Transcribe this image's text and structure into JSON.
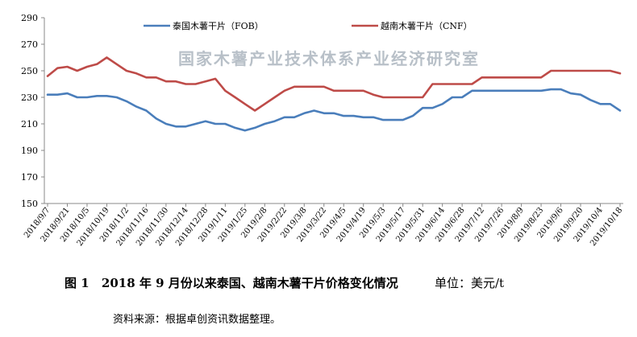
{
  "chart_data": {
    "type": "line",
    "title": "",
    "watermark": "国家木薯产业技术体系产业经济研究室",
    "ylim": [
      150,
      290
    ],
    "yticks": [
      150,
      170,
      190,
      210,
      230,
      250,
      270,
      290
    ],
    "grid": false,
    "legend_position": "top",
    "x": [
      "2018/9/7",
      "2018/9/14",
      "2018/9/21",
      "2018/9/28",
      "2018/10/5",
      "2018/10/12",
      "2018/10/19",
      "2018/10/26",
      "2018/11/2",
      "2018/11/9",
      "2018/11/16",
      "2018/11/23",
      "2018/11/30",
      "2018/12/7",
      "2018/12/14",
      "2018/12/21",
      "2018/12/28",
      "2019/1/4",
      "2019/1/11",
      "2019/1/18",
      "2019/1/25",
      "2019/2/1",
      "2019/2/8",
      "2019/2/15",
      "2019/2/22",
      "2019/3/1",
      "2019/3/8",
      "2019/3/15",
      "2019/3/22",
      "2019/3/29",
      "2019/4/5",
      "2019/4/12",
      "2019/4/19",
      "2019/4/26",
      "2019/5/3",
      "2019/5/10",
      "2019/5/17",
      "2019/5/24",
      "2019/5/31",
      "2019/6/7",
      "2019/6/14",
      "2019/6/21",
      "2019/6/28",
      "2019/7/5",
      "2019/7/12",
      "2019/7/19",
      "2019/7/26",
      "2019/8/2",
      "2019/8/9",
      "2019/8/16",
      "2019/8/23",
      "2019/8/30",
      "2019/9/6",
      "2019/9/13",
      "2019/9/20",
      "2019/9/27",
      "2019/10/4",
      "2019/10/11",
      "2019/10/18"
    ],
    "xtick_labels": [
      "2018/9/7",
      "2018/9/21",
      "2018/10/5",
      "2018/10/19",
      "2018/11/2",
      "2018/11/16",
      "2018/11/30",
      "2018/12/14",
      "2018/12/28",
      "2019/1/11",
      "2019/1/25",
      "2019/2/8",
      "2019/2/22",
      "2019/3/8",
      "2019/3/22",
      "2019/4/5",
      "2019/4/19",
      "2019/5/3",
      "2019/5/17",
      "2019/5/31",
      "2019/6/14",
      "2019/6/28",
      "2019/7/12",
      "2019/7/26",
      "2019/8/9",
      "2019/8/23",
      "2019/9/6",
      "2019/9/20",
      "2019/10/4",
      "2019/10/18"
    ],
    "series": [
      {
        "name": "泰国木薯干片（FOB）",
        "color": "#4a7ebb",
        "values": [
          232,
          232,
          233,
          230,
          230,
          231,
          231,
          230,
          227,
          223,
          220,
          214,
          210,
          208,
          208,
          210,
          212,
          210,
          210,
          207,
          205,
          207,
          210,
          212,
          215,
          215,
          218,
          220,
          218,
          218,
          216,
          216,
          215,
          215,
          213,
          213,
          213,
          216,
          222,
          222,
          225,
          230,
          230,
          235,
          235,
          235,
          235,
          235,
          235,
          235,
          235,
          236,
          236,
          233,
          232,
          228,
          225,
          225,
          220
        ]
      },
      {
        "name": "越南木薯干片（CNF）",
        "color": "#be4b48",
        "values": [
          246,
          252,
          253,
          250,
          253,
          255,
          260,
          255,
          250,
          248,
          245,
          245,
          242,
          242,
          240,
          240,
          242,
          244,
          235,
          230,
          225,
          220,
          225,
          230,
          235,
          238,
          238,
          238,
          238,
          235,
          235,
          235,
          235,
          232,
          230,
          230,
          230,
          230,
          230,
          240,
          240,
          240,
          240,
          240,
          245,
          245,
          245,
          245,
          245,
          245,
          245,
          250,
          250,
          250,
          250,
          250,
          250,
          250,
          248
        ]
      }
    ]
  },
  "caption": {
    "figure_label": "图 1",
    "title": "2018 年 9 月份以来泰国、越南木薯干片价格变化情况",
    "unit": "单位：美元/t"
  },
  "source": "资料来源：根据卓创资讯数据整理。"
}
